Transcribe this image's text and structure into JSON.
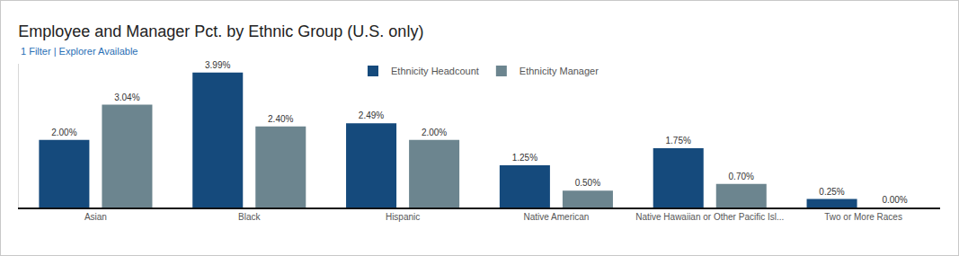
{
  "chart_data": {
    "type": "bar",
    "title": "Employee and Manager Pct. by Ethnic Group (U.S. only)",
    "subtitle": "1 Filter | Explorer Available",
    "categories": [
      "Asian",
      "Black",
      "Hispanic",
      "Native American",
      "Native Hawaiian or Other Pacific Isl...",
      "Two or More Races"
    ],
    "series": [
      {
        "name": "Ethnicity Headcount",
        "color": "#154a7c",
        "values": [
          2.0,
          3.99,
          2.49,
          1.25,
          1.75,
          0.25
        ],
        "value_labels": [
          "2.00%",
          "3.99%",
          "2.49%",
          "1.25%",
          "1.75%",
          "0.25%"
        ]
      },
      {
        "name": "Ethnicity Manager",
        "color": "#6c858f",
        "values": [
          3.04,
          2.4,
          2.0,
          0.5,
          0.7,
          0.0
        ],
        "value_labels": [
          "3.04%",
          "2.40%",
          "2.00%",
          "0.50%",
          "0.70%",
          "0.00%"
        ]
      }
    ],
    "ylim": [
      0,
      4.25
    ],
    "grid": false,
    "legend": "top",
    "data_labels": true,
    "tick_labels": "x"
  }
}
